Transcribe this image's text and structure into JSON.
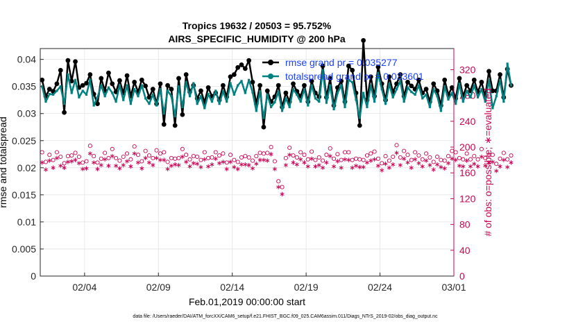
{
  "chart_data": {
    "type": "line",
    "title": "Tropics 19632 / 20503 = 95.752%",
    "subtitle": "AIRS_SPECIFIC_HUMIDITY @ 200 hPa",
    "xlabel": "Feb.01,2019 00:00:00 start",
    "ylabel_left": "rmse and totalspread",
    "ylabel_right": "# of obs: o=possible; ∗=evaluated",
    "footnote": "data file: /Users/raeder/DAI/ATM_forcXX/CAM6_setup/f.e21.FHIST_BGC.f09_025.CAM6assim.011/Diags_NTrS_2019-02/obs_diag_output.nc",
    "x_ticks": [
      {
        "value": 3,
        "label": "02/04"
      },
      {
        "value": 8,
        "label": "02/09"
      },
      {
        "value": 13,
        "label": "02/14"
      },
      {
        "value": 18,
        "label": "02/19"
      },
      {
        "value": 23,
        "label": "02/24"
      },
      {
        "value": 28,
        "label": "03/01"
      }
    ],
    "xlim": [
      0,
      28
    ],
    "ylim_left": [
      0,
      0.042
    ],
    "yticks_left": [
      "0",
      "0.005",
      "0.01",
      "0.015",
      "0.02",
      "0.025",
      "0.03",
      "0.035",
      "0.04"
    ],
    "ylim_right": [
      0,
      352.8
    ],
    "yticks_right": [
      "0",
      "40",
      "80",
      "120",
      "160",
      "200",
      "240",
      "280",
      "320"
    ],
    "colors": {
      "rmse": "#000000",
      "spread": "#00807f",
      "counts": "#cc0052",
      "legend_text": "#1a40ff",
      "grid": "#e2e2e2"
    },
    "legend": [
      {
        "label": "rmse grand pr = 0.035277"
      },
      {
        "label": "totalspread grand pr = 0.033601"
      }
    ],
    "series": [
      {
        "name": "rmse",
        "axis": "left",
        "step": 0.25,
        "values": [
          0.0362,
          0.0332,
          0.0345,
          0.0341,
          0.0355,
          0.038,
          0.0302,
          0.0398,
          0.036,
          0.0396,
          0.0348,
          0.0352,
          0.0356,
          0.0372,
          0.0336,
          0.0318,
          0.0365,
          0.0342,
          0.0375,
          0.0355,
          0.034,
          0.0361,
          0.0338,
          0.037,
          0.0332,
          0.0358,
          0.034,
          0.0362,
          0.0351,
          0.033,
          0.0345,
          0.0318,
          0.0355,
          0.028,
          0.0352,
          0.0345,
          0.0278,
          0.0365,
          0.0298,
          0.0372,
          0.034,
          0.0352,
          0.0328,
          0.0342,
          0.0321,
          0.0348,
          0.0332,
          0.0338,
          0.0325,
          0.0352,
          0.0331,
          0.0368,
          0.0372,
          0.0385,
          0.039,
          0.0383,
          0.0398,
          0.0358,
          0.0318,
          0.0352,
          0.0275,
          0.0342,
          0.0322,
          0.0331,
          0.0352,
          0.0312,
          0.0338,
          0.0322,
          0.0355,
          0.0341,
          0.0332,
          0.0352,
          0.0322,
          0.036,
          0.0338,
          0.0331,
          0.0388,
          0.033,
          0.0365,
          0.0315,
          0.0348,
          0.036,
          0.0322,
          0.0388,
          0.038,
          0.0338,
          0.0278,
          0.0435,
          0.0325,
          0.0368,
          0.0332,
          0.0386,
          0.0355,
          0.0325,
          0.0368,
          0.034,
          0.0355,
          0.0372,
          0.0332,
          0.0358,
          0.0351,
          0.0345,
          0.0362,
          0.0338,
          0.0345,
          0.0322,
          0.0355,
          0.0342,
          0.0315,
          0.0362,
          0.0335,
          0.0348,
          0.0328,
          0.0365,
          0.0332,
          0.0352,
          0.0342,
          0.0362,
          0.034,
          0.0358,
          0.0332,
          0.0378,
          0.0342,
          0.0342,
          0.0372,
          0.033,
          0.0382,
          0.0352
        ]
      },
      {
        "name": "totalspread",
        "axis": "left",
        "step": 0.25,
        "values": [
          0.035,
          0.0322,
          0.0336,
          0.0335,
          0.0342,
          0.035,
          0.0318,
          0.0372,
          0.0338,
          0.0362,
          0.033,
          0.0342,
          0.0335,
          0.0362,
          0.0315,
          0.033,
          0.0352,
          0.0332,
          0.0348,
          0.0338,
          0.0322,
          0.0352,
          0.0325,
          0.0352,
          0.0318,
          0.0345,
          0.0332,
          0.0352,
          0.0328,
          0.0318,
          0.0335,
          0.0315,
          0.0345,
          0.03,
          0.0342,
          0.0332,
          0.0295,
          0.035,
          0.0312,
          0.0358,
          0.0332,
          0.0356,
          0.0318,
          0.0332,
          0.031,
          0.0336,
          0.0322,
          0.0342,
          0.0318,
          0.0341,
          0.0322,
          0.0356,
          0.0335,
          0.0352,
          0.036,
          0.0338,
          0.0362,
          0.0339,
          0.0305,
          0.0341,
          0.0292,
          0.0335,
          0.0312,
          0.0321,
          0.034,
          0.0305,
          0.0328,
          0.0312,
          0.0345,
          0.0335,
          0.0322,
          0.0345,
          0.0315,
          0.0352,
          0.0328,
          0.0322,
          0.038,
          0.032,
          0.0352,
          0.0308,
          0.0338,
          0.0352,
          0.0312,
          0.0362,
          0.0358,
          0.0326,
          0.0292,
          0.0338,
          0.0312,
          0.0352,
          0.0322,
          0.0375,
          0.0345,
          0.0318,
          0.0355,
          0.033,
          0.0345,
          0.036,
          0.0322,
          0.0348,
          0.034,
          0.0335,
          0.0352,
          0.0328,
          0.0335,
          0.0312,
          0.0345,
          0.0332,
          0.0305,
          0.035,
          0.0326,
          0.0338,
          0.0318,
          0.0355,
          0.0322,
          0.0342,
          0.033,
          0.0352,
          0.033,
          0.0345,
          0.0322,
          0.0362,
          0.031,
          0.0332,
          0.0362,
          0.0322,
          0.0392,
          0.0352
        ]
      },
      {
        "name": "possible",
        "axis": "right",
        "step": 0.25,
        "values": [
          192,
          177,
          188,
          180,
          192,
          185,
          175,
          186,
          187,
          191,
          185,
          176,
          178,
          202,
          186,
          176,
          182,
          191,
          183,
          197,
          183,
          179,
          185,
          190,
          181,
          201,
          188,
          178,
          194,
          187,
          183,
          195,
          190,
          192,
          177,
          183,
          182,
          183,
          197,
          188,
          181,
          186,
          185,
          180,
          192,
          183,
          184,
          192,
          187,
          190,
          176,
          188,
          180,
          177,
          184,
          186,
          184,
          179,
          186,
          191,
          190,
          191,
          200,
          178,
          147,
          138,
          183,
          199,
          187,
          184,
          192,
          188,
          181,
          193,
          180,
          184,
          179,
          188,
          198,
          182,
          189,
          180,
          192,
          192,
          180,
          182,
          181,
          180,
          187,
          190,
          193,
          182,
          175,
          186,
          179,
          185,
          203,
          184,
          194,
          188,
          180,
          192,
          187,
          181,
          190,
          184,
          177,
          185,
          180,
          179,
          186,
          194,
          192,
          183,
          181,
          190,
          181,
          186,
          181,
          197,
          183,
          188,
          188,
          174,
          182,
          191,
          181,
          187
        ]
      },
      {
        "name": "evaluated",
        "axis": "right",
        "step": 0.25,
        "values": [
          176,
          165,
          179,
          168,
          183,
          171,
          168,
          177,
          178,
          180,
          175,
          166,
          167,
          190,
          176,
          166,
          172,
          181,
          171,
          186,
          171,
          167,
          172,
          178,
          170,
          190,
          176,
          167,
          183,
          176,
          172,
          183,
          180,
          180,
          166,
          171,
          173,
          172,
          185,
          177,
          170,
          175,
          174,
          169,
          181,
          170,
          173,
          182,
          175,
          177,
          166,
          177,
          169,
          166,
          173,
          173,
          172,
          167,
          174,
          180,
          180,
          179,
          189,
          166,
          138,
          127,
          172,
          188,
          176,
          173,
          181,
          176,
          170,
          182,
          170,
          172,
          168,
          176,
          186,
          170,
          178,
          168,
          181,
          180,
          168,
          171,
          169,
          169,
          176,
          179,
          181,
          171,
          164,
          174,
          168,
          173,
          191,
          172,
          182,
          176,
          168,
          181,
          175,
          170,
          179,
          172,
          165,
          173,
          169,
          167,
          175,
          182,
          180,
          171,
          170,
          179,
          170,
          174,
          170,
          185,
          171,
          176,
          177,
          163,
          170,
          180,
          169,
          176
        ]
      }
    ]
  }
}
